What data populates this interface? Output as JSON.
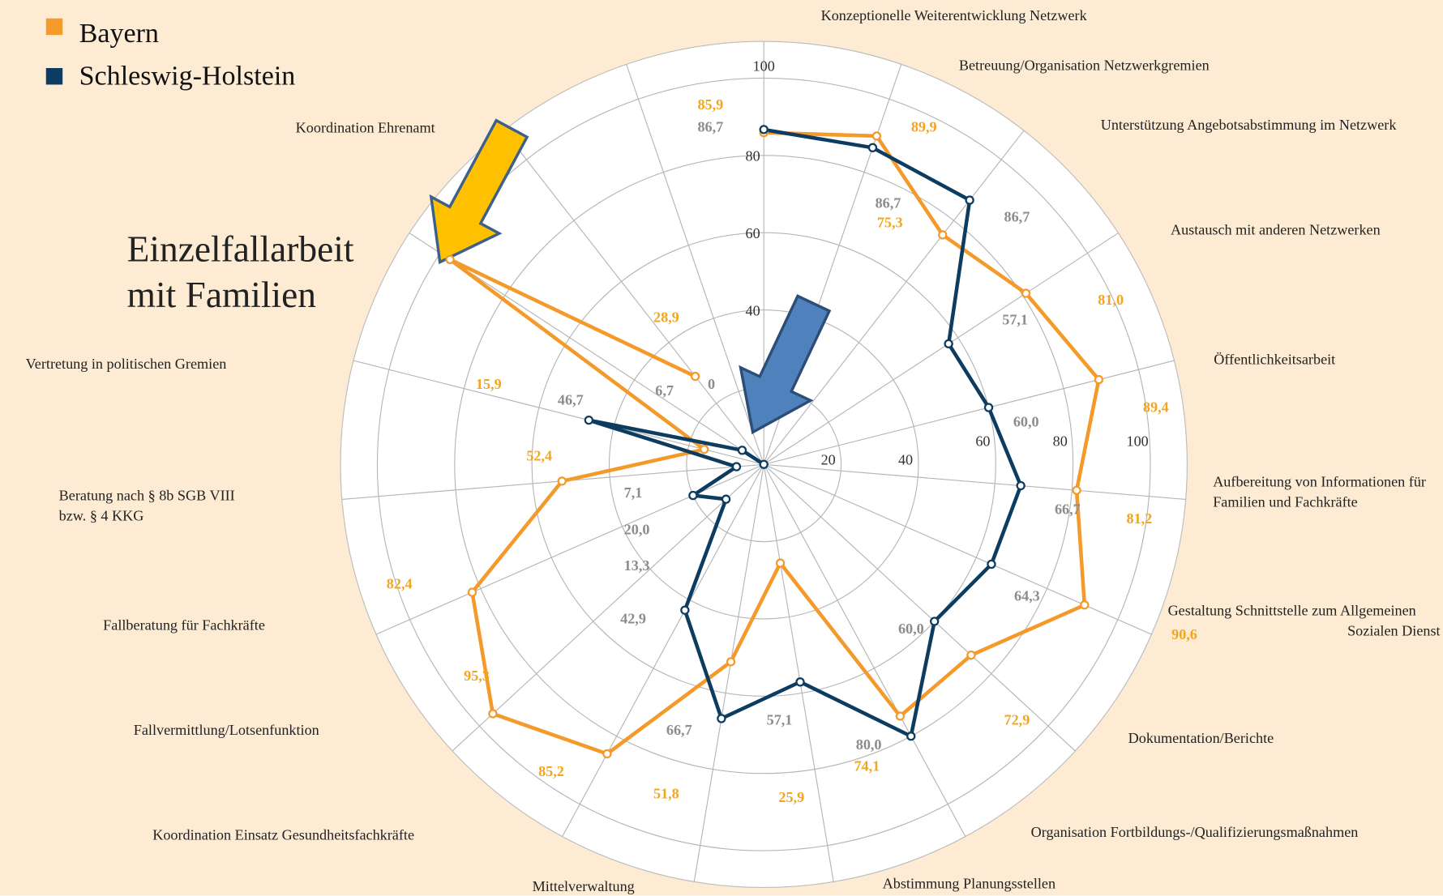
{
  "chart_data": {
    "type": "radar",
    "categories": [
      "Konzeptionelle Weiterentwicklung Netzwerk",
      "Betreuung/Organisation Netzwerkgremien",
      "Unterstützung Angebotsabstimmung im Netzwerk",
      "Austausch mit anderen Netzwerken",
      "Öffentlichkeitsarbeit",
      "Aufbereitung von Informationen für Familien und Fachkräfte",
      "Gestaltung Schnittstelle zum Allgemeinen Sozialen Dienst",
      "Dokumentation/Berichte",
      "Organisation Fortbildungs-/Qualifizierungsmaßnahmen",
      "Abstimmung Planungsstellen",
      "Mittelverwaltung",
      "Koordination Einsatz Gesundheitsfachkräfte",
      "Fallvermittlung/Lotsenfunktion",
      "Fallberatung für Fachkräfte",
      "Beratung nach § 8b SGB VIII bzw. § 4 KKG",
      "Vertretung in politischen Gremien",
      "Einzelfallarbeit mit Familien",
      "Koordination Ehrenamt",
      null
    ],
    "series": [
      {
        "name": "Bayern",
        "color": "#f39a2b",
        "values": [
          85.9,
          89.9,
          75.3,
          81.0,
          89.4,
          81.2,
          90.6,
          72.9,
          74.1,
          25.9,
          51.8,
          85.2,
          95.3,
          82.4,
          52.4,
          15.9,
          97,
          28.9,
          null
        ],
        "value_labels": [
          "85,9",
          "89,9",
          "75,3",
          "81,0",
          "89,4",
          "81,2",
          "90,6",
          "72,9",
          "74,1",
          "25,9",
          "51,8",
          "85,2",
          "95,3",
          "82,4",
          "52,4",
          "15,9",
          null,
          "28,9",
          null
        ],
        "label_color": "#f3a51f"
      },
      {
        "name": "Schleswig-Holstein",
        "color": "#0d3c61",
        "values": [
          86.7,
          86.7,
          86.7,
          57.1,
          60.0,
          66.7,
          64.3,
          60.0,
          80.0,
          57.1,
          66.7,
          42.9,
          13.3,
          20.0,
          7.1,
          46.7,
          6.7,
          0,
          null
        ],
        "value_labels": [
          "86,7",
          "86,7",
          "86,7",
          "57,1",
          "60,0",
          "66,7",
          "64,3",
          "60,0",
          "80,0",
          "57,1",
          "66,7",
          "42,9",
          "13,3",
          "20,0",
          "7,1",
          "46,7",
          "6,7",
          "0",
          null
        ],
        "label_color": "#8c8c8c"
      }
    ],
    "ylim": [
      0,
      100
    ],
    "yticks": [
      20,
      40,
      60,
      80,
      100
    ],
    "grid": true,
    "legend": "top-left",
    "background": "#fdebd3"
  }
}
